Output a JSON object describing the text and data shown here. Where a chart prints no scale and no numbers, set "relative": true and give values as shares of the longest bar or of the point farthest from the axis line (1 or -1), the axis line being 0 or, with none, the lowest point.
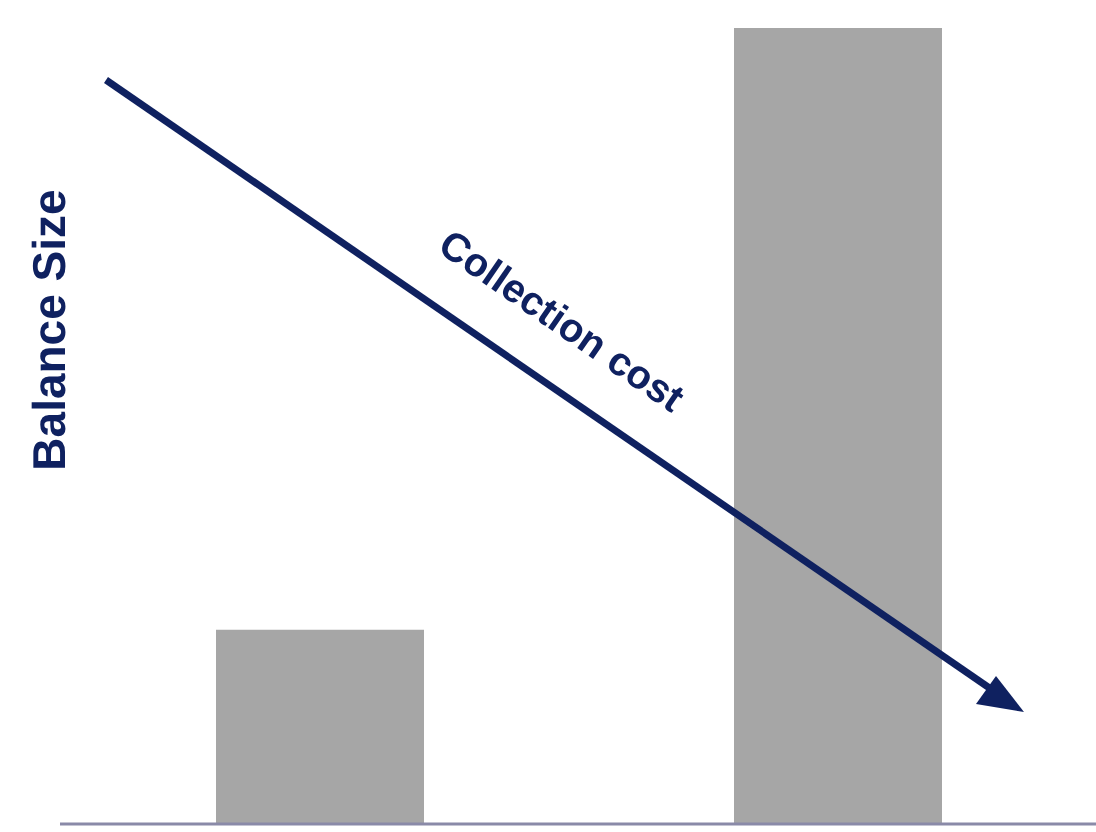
{
  "chart_data": {
    "type": "bar",
    "categories": [
      null,
      null
    ],
    "values": [
      0.244,
      1
    ],
    "color": "#a6a6a6",
    "relative": true,
    "ylabel": "Balance Size",
    "annotations": [
      "Collection cost"
    ]
  }
}
